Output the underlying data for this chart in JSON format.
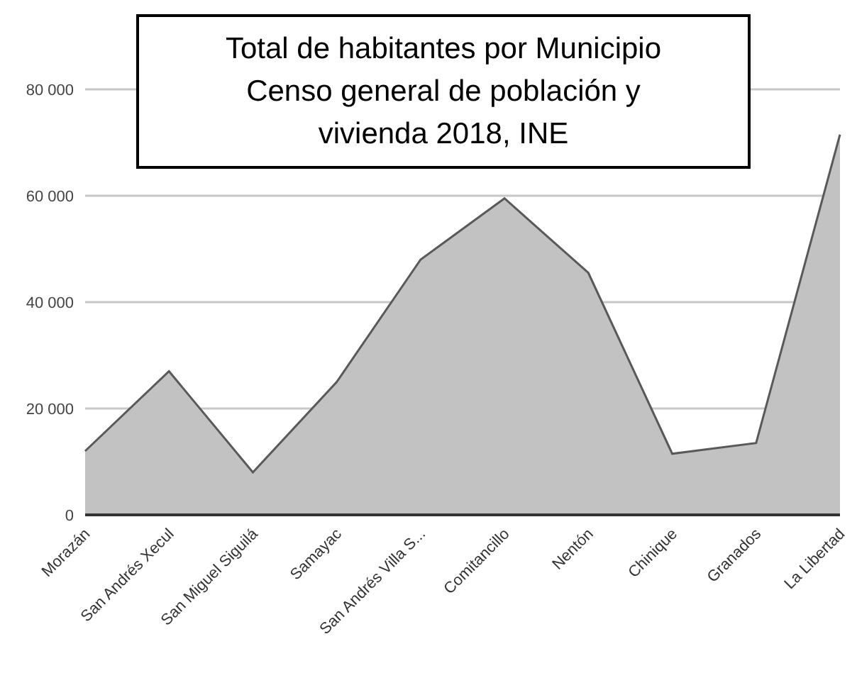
{
  "chart_data": {
    "type": "area",
    "title": "Total de habitantes por Municipio",
    "subtitle": "Censo general de población y vivienda 2018, INE",
    "categories": [
      "Morazán",
      "San Andrés Xecul",
      "San Miguel Siguilá",
      "Samayac",
      "San Andrés Villa S...",
      "Comitancillo",
      "Nentón",
      "Chinique",
      "Granados",
      "La Libertad"
    ],
    "values": [
      12000,
      27000,
      8000,
      25000,
      48000,
      59500,
      45500,
      11500,
      13500,
      71500
    ],
    "color": "#c2c2c2",
    "ylim": [
      0,
      80000
    ],
    "yticks": [
      0,
      {
        "value": 20000,
        "label": "20 000"
      },
      {
        "value": 40000,
        "label": "40 000"
      },
      {
        "value": 60000,
        "label": "60 000"
      },
      {
        "value": 80000,
        "label": "80 000"
      }
    ],
    "grid": "y"
  }
}
